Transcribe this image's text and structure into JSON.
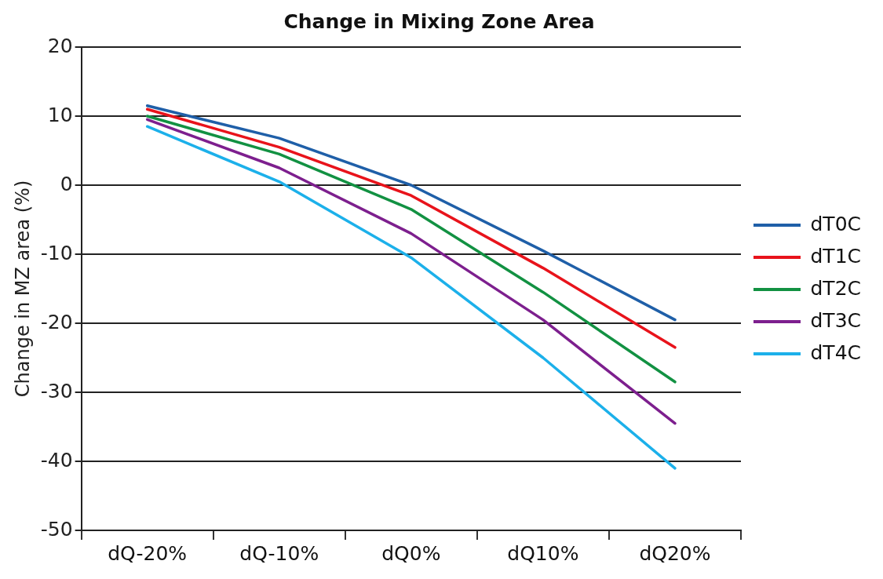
{
  "chart_data": {
    "type": "line",
    "title": "Change in Mixing Zone Area",
    "ylabel": "Change in MZ area (%)",
    "categories": [
      "dQ-20%",
      "dQ-10%",
      "dQ0%",
      "dQ10%",
      "dQ20%"
    ],
    "series": [
      {
        "name": "dT0C",
        "color": "#1f5fa8",
        "values": [
          11.5,
          6.8,
          0,
          -9.5,
          -19.5
        ]
      },
      {
        "name": "dT1C",
        "color": "#e8131b",
        "values": [
          11,
          5.5,
          -1.5,
          -12,
          -23.5
        ]
      },
      {
        "name": "dT2C",
        "color": "#129142",
        "values": [
          10,
          4.5,
          -3.5,
          -15.5,
          -28.5
        ]
      },
      {
        "name": "dT3C",
        "color": "#7d1f8e",
        "values": [
          9.5,
          2.5,
          -7,
          -19.5,
          -34.5
        ]
      },
      {
        "name": "dT4C",
        "color": "#1cb0ea",
        "values": [
          8.5,
          0.5,
          -10.5,
          -25,
          -41
        ]
      }
    ],
    "ylim": [
      -50,
      20
    ],
    "yticks": [
      -50,
      -40,
      -30,
      -20,
      -10,
      0,
      10,
      20
    ],
    "grid": "y",
    "legend": "right",
    "marker": "none",
    "line_style": "solid"
  }
}
